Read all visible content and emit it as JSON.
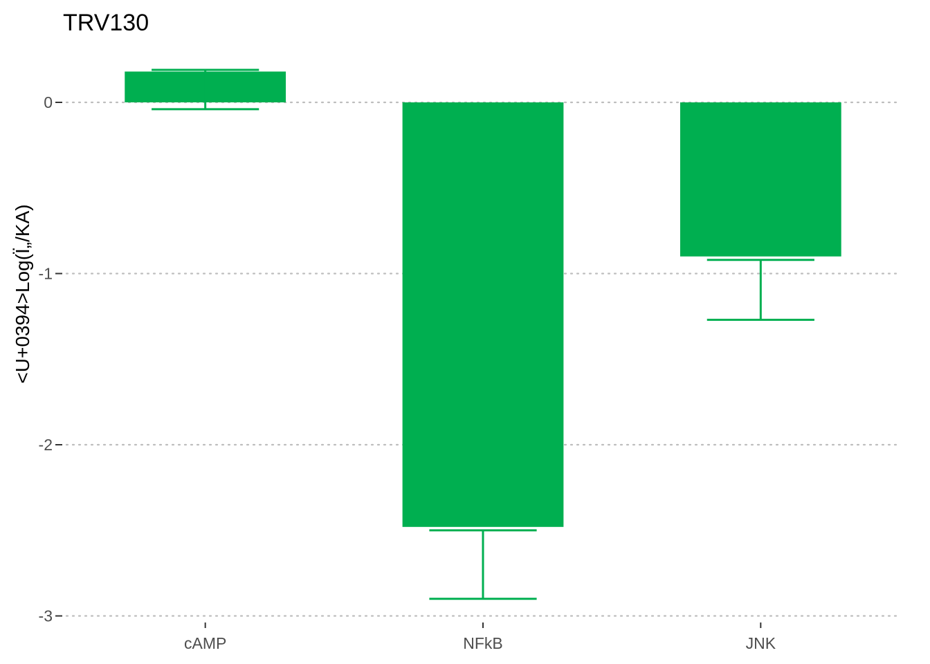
{
  "chart_data": {
    "type": "bar",
    "title": "TRV130",
    "xlabel": "",
    "ylabel": "<U+0394>Log(Ï„/KA)",
    "categories": [
      "cAMP",
      "NFkB",
      "JNK"
    ],
    "values": [
      0.18,
      -2.48,
      -0.9
    ],
    "error_bars": [
      {
        "value": 0.19,
        "low": -0.04
      },
      {
        "value": -2.5,
        "low": -2.9
      },
      {
        "value": -0.92,
        "low": -1.27
      }
    ],
    "ylim": [
      -3.0,
      0.25
    ],
    "y_ticks": [
      0,
      -1,
      -2,
      -3
    ],
    "grid": "horizontal dotted",
    "legend": "none",
    "bar_color": "#00AF50"
  }
}
